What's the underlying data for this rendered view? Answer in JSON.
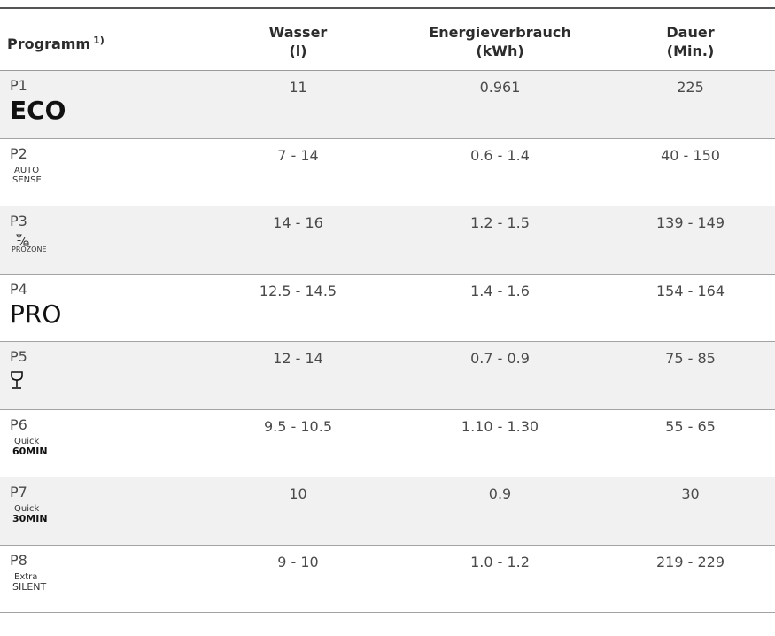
{
  "header": {
    "program": "Programm",
    "program_note": "1)",
    "water": "Wasser",
    "water_unit": "(l)",
    "energy": "Energieverbrauch",
    "energy_unit": "(kWh)",
    "duration": "Dauer",
    "duration_unit": "(Min.)"
  },
  "rows": [
    {
      "code": "P1",
      "symbol": "ECO",
      "water": "11",
      "energy": "0.961",
      "duration": "225"
    },
    {
      "code": "P2",
      "symbol_line1": "AUTO",
      "symbol_line2": "SENSE",
      "water": "7 - 14",
      "energy": "0.6 - 1.4",
      "duration": "40 - 150"
    },
    {
      "code": "P3",
      "symbol": "PROZONE",
      "symbol_icon": "glass-plate-icon",
      "water": "14 - 16",
      "energy": "1.2 - 1.5",
      "duration": "139 - 149"
    },
    {
      "code": "P4",
      "symbol": "PRO",
      "water": "12.5 - 14.5",
      "energy": "1.4 - 1.6",
      "duration": "154 - 164"
    },
    {
      "code": "P5",
      "symbol_icon": "wine-glass-icon",
      "water": "12 - 14",
      "energy": "0.7 - 0.9",
      "duration": "75 - 85"
    },
    {
      "code": "P6",
      "symbol_line1": "Quick",
      "symbol_line2": "60MIN",
      "water": "9.5 - 10.5",
      "energy": "1.10 - 1.30",
      "duration": "55 - 65"
    },
    {
      "code": "P7",
      "symbol_line1": "Quick",
      "symbol_line2": "30MIN",
      "water": "10",
      "energy": "0.9",
      "duration": "30"
    },
    {
      "code": "P8",
      "symbol_line1": "Extra",
      "symbol_line2": "SILENT",
      "water": "9 - 10",
      "energy": "1.0 - 1.2",
      "duration": "219 - 229"
    }
  ],
  "colors": {
    "row_alt": "#f1f1f1",
    "rule": "#555555",
    "text": "#4a4a4a"
  }
}
